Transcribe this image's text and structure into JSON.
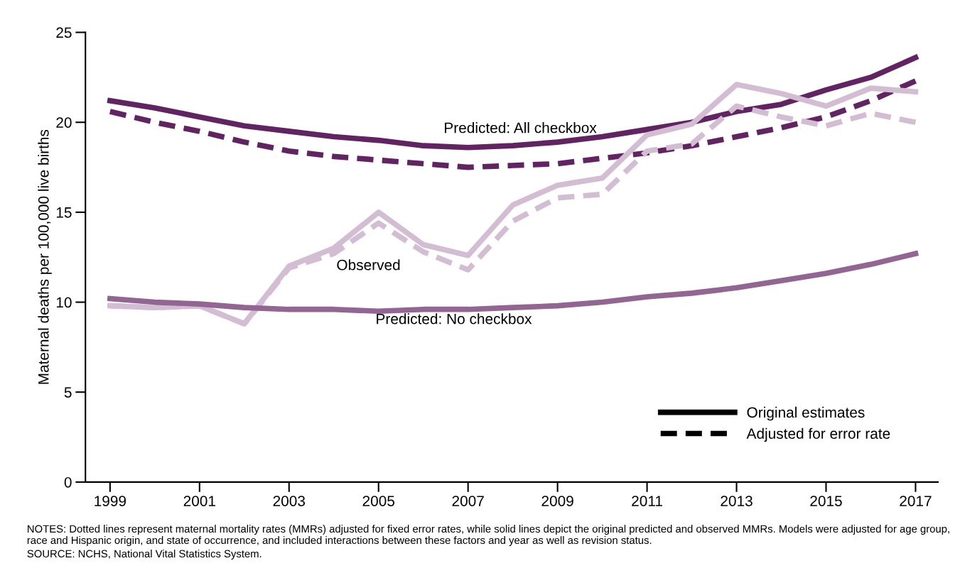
{
  "chart_data": {
    "type": "line",
    "ylabel": "Maternal deaths per 100,000 live births",
    "x": [
      1999,
      2000,
      2001,
      2002,
      2003,
      2004,
      2005,
      2006,
      2007,
      2008,
      2009,
      2010,
      2011,
      2012,
      2013,
      2014,
      2015,
      2016,
      2017
    ],
    "series": [
      {
        "color": "#622363",
        "line_style": "solid",
        "values": [
          21.2,
          20.8,
          20.3,
          19.8,
          19.5,
          19.2,
          19.0,
          18.7,
          18.6,
          18.7,
          18.9,
          19.2,
          19.6,
          20.0,
          20.6,
          21.0,
          21.8,
          22.5,
          23.6
        ]
      },
      {
        "color": "#622363",
        "line_style": "dashed",
        "values": [
          20.6,
          20.0,
          19.5,
          18.9,
          18.4,
          18.1,
          17.9,
          17.7,
          17.5,
          17.6,
          17.7,
          18.0,
          18.3,
          18.7,
          19.2,
          19.7,
          20.3,
          21.2,
          22.3
        ]
      },
      {
        "color": "#d3bdd3",
        "line_style": "solid",
        "values": [
          9.8,
          9.7,
          9.8,
          8.8,
          12.0,
          13.0,
          15.0,
          13.2,
          12.6,
          15.4,
          16.5,
          16.9,
          19.3,
          19.9,
          22.1,
          21.6,
          20.9,
          21.9,
          21.7
        ]
      },
      {
        "color": "#d3bdd3",
        "line_style": "dashed",
        "values": [
          9.8,
          9.7,
          9.8,
          8.8,
          11.9,
          12.7,
          14.4,
          12.8,
          11.8,
          14.5,
          15.8,
          16.0,
          18.4,
          18.8,
          20.9,
          20.3,
          19.8,
          20.5,
          20.0
        ]
      },
      {
        "color": "#926593",
        "line_style": "solid",
        "values": [
          10.2,
          10.0,
          9.9,
          9.7,
          9.6,
          9.6,
          9.5,
          9.6,
          9.6,
          9.7,
          9.8,
          10.0,
          10.3,
          10.5,
          10.8,
          11.2,
          11.6,
          12.1,
          12.7
        ]
      }
    ],
    "xlim": [
      1998.45,
      2017.5
    ],
    "xticks": [
      1999,
      2001,
      2003,
      2005,
      2007,
      2009,
      2011,
      2013,
      2015,
      2017
    ],
    "ylim": [
      0,
      25
    ],
    "yticks": [
      0,
      5,
      10,
      15,
      20,
      25
    ],
    "grid": false,
    "marker": "none",
    "annotations": [
      "Predicted: All checkbox",
      "Observed",
      "Predicted: No checkbox",
      "Original estimates",
      "Adjusted for error rate",
      "NOTES: Dotted lines represent maternal mortality rates (MMRs) adjusted for fixed error rates, while solid lines depict the original predicted and observed MMRs. Models were adjusted for age group, race and Hispanic origin, and state of occurrence, and included interactions between these factors and year as well as revision status.",
      "SOURCE: NCHS, National Vital Statistics System."
    ]
  }
}
